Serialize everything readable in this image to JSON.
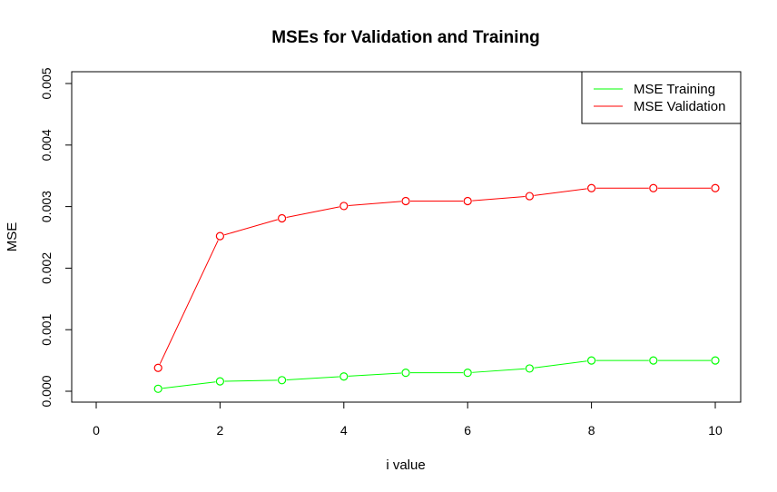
{
  "chart_data": {
    "type": "line",
    "title": "MSEs for Validation and Training",
    "xlabel": "i value",
    "ylabel": "MSE",
    "xlim": [
      0,
      10
    ],
    "ylim": [
      0,
      0.005
    ],
    "x_ticks": [
      "0",
      "2",
      "4",
      "6",
      "8",
      "10"
    ],
    "x_tick_values": [
      0,
      2,
      4,
      6,
      8,
      10
    ],
    "y_ticks": [
      "0.000",
      "0.001",
      "0.002",
      "0.003",
      "0.004",
      "0.005"
    ],
    "y_tick_values": [
      0,
      0.001,
      0.002,
      0.003,
      0.004,
      0.005
    ],
    "x": [
      1,
      2,
      3,
      4,
      5,
      6,
      7,
      8,
      9,
      10
    ],
    "series": [
      {
        "name": "MSE Training",
        "color": "#00ff00",
        "values": [
          4e-05,
          0.00016,
          0.00018,
          0.00024,
          0.0003,
          0.0003,
          0.00037,
          0.0005,
          0.0005,
          0.0005
        ]
      },
      {
        "name": "MSE Validation",
        "color": "#ff0000",
        "values": [
          0.00038,
          0.00252,
          0.00281,
          0.00301,
          0.00309,
          0.00309,
          0.00317,
          0.0033,
          0.0033,
          0.0033
        ]
      }
    ],
    "grid": false,
    "legend_position": "top-right"
  }
}
